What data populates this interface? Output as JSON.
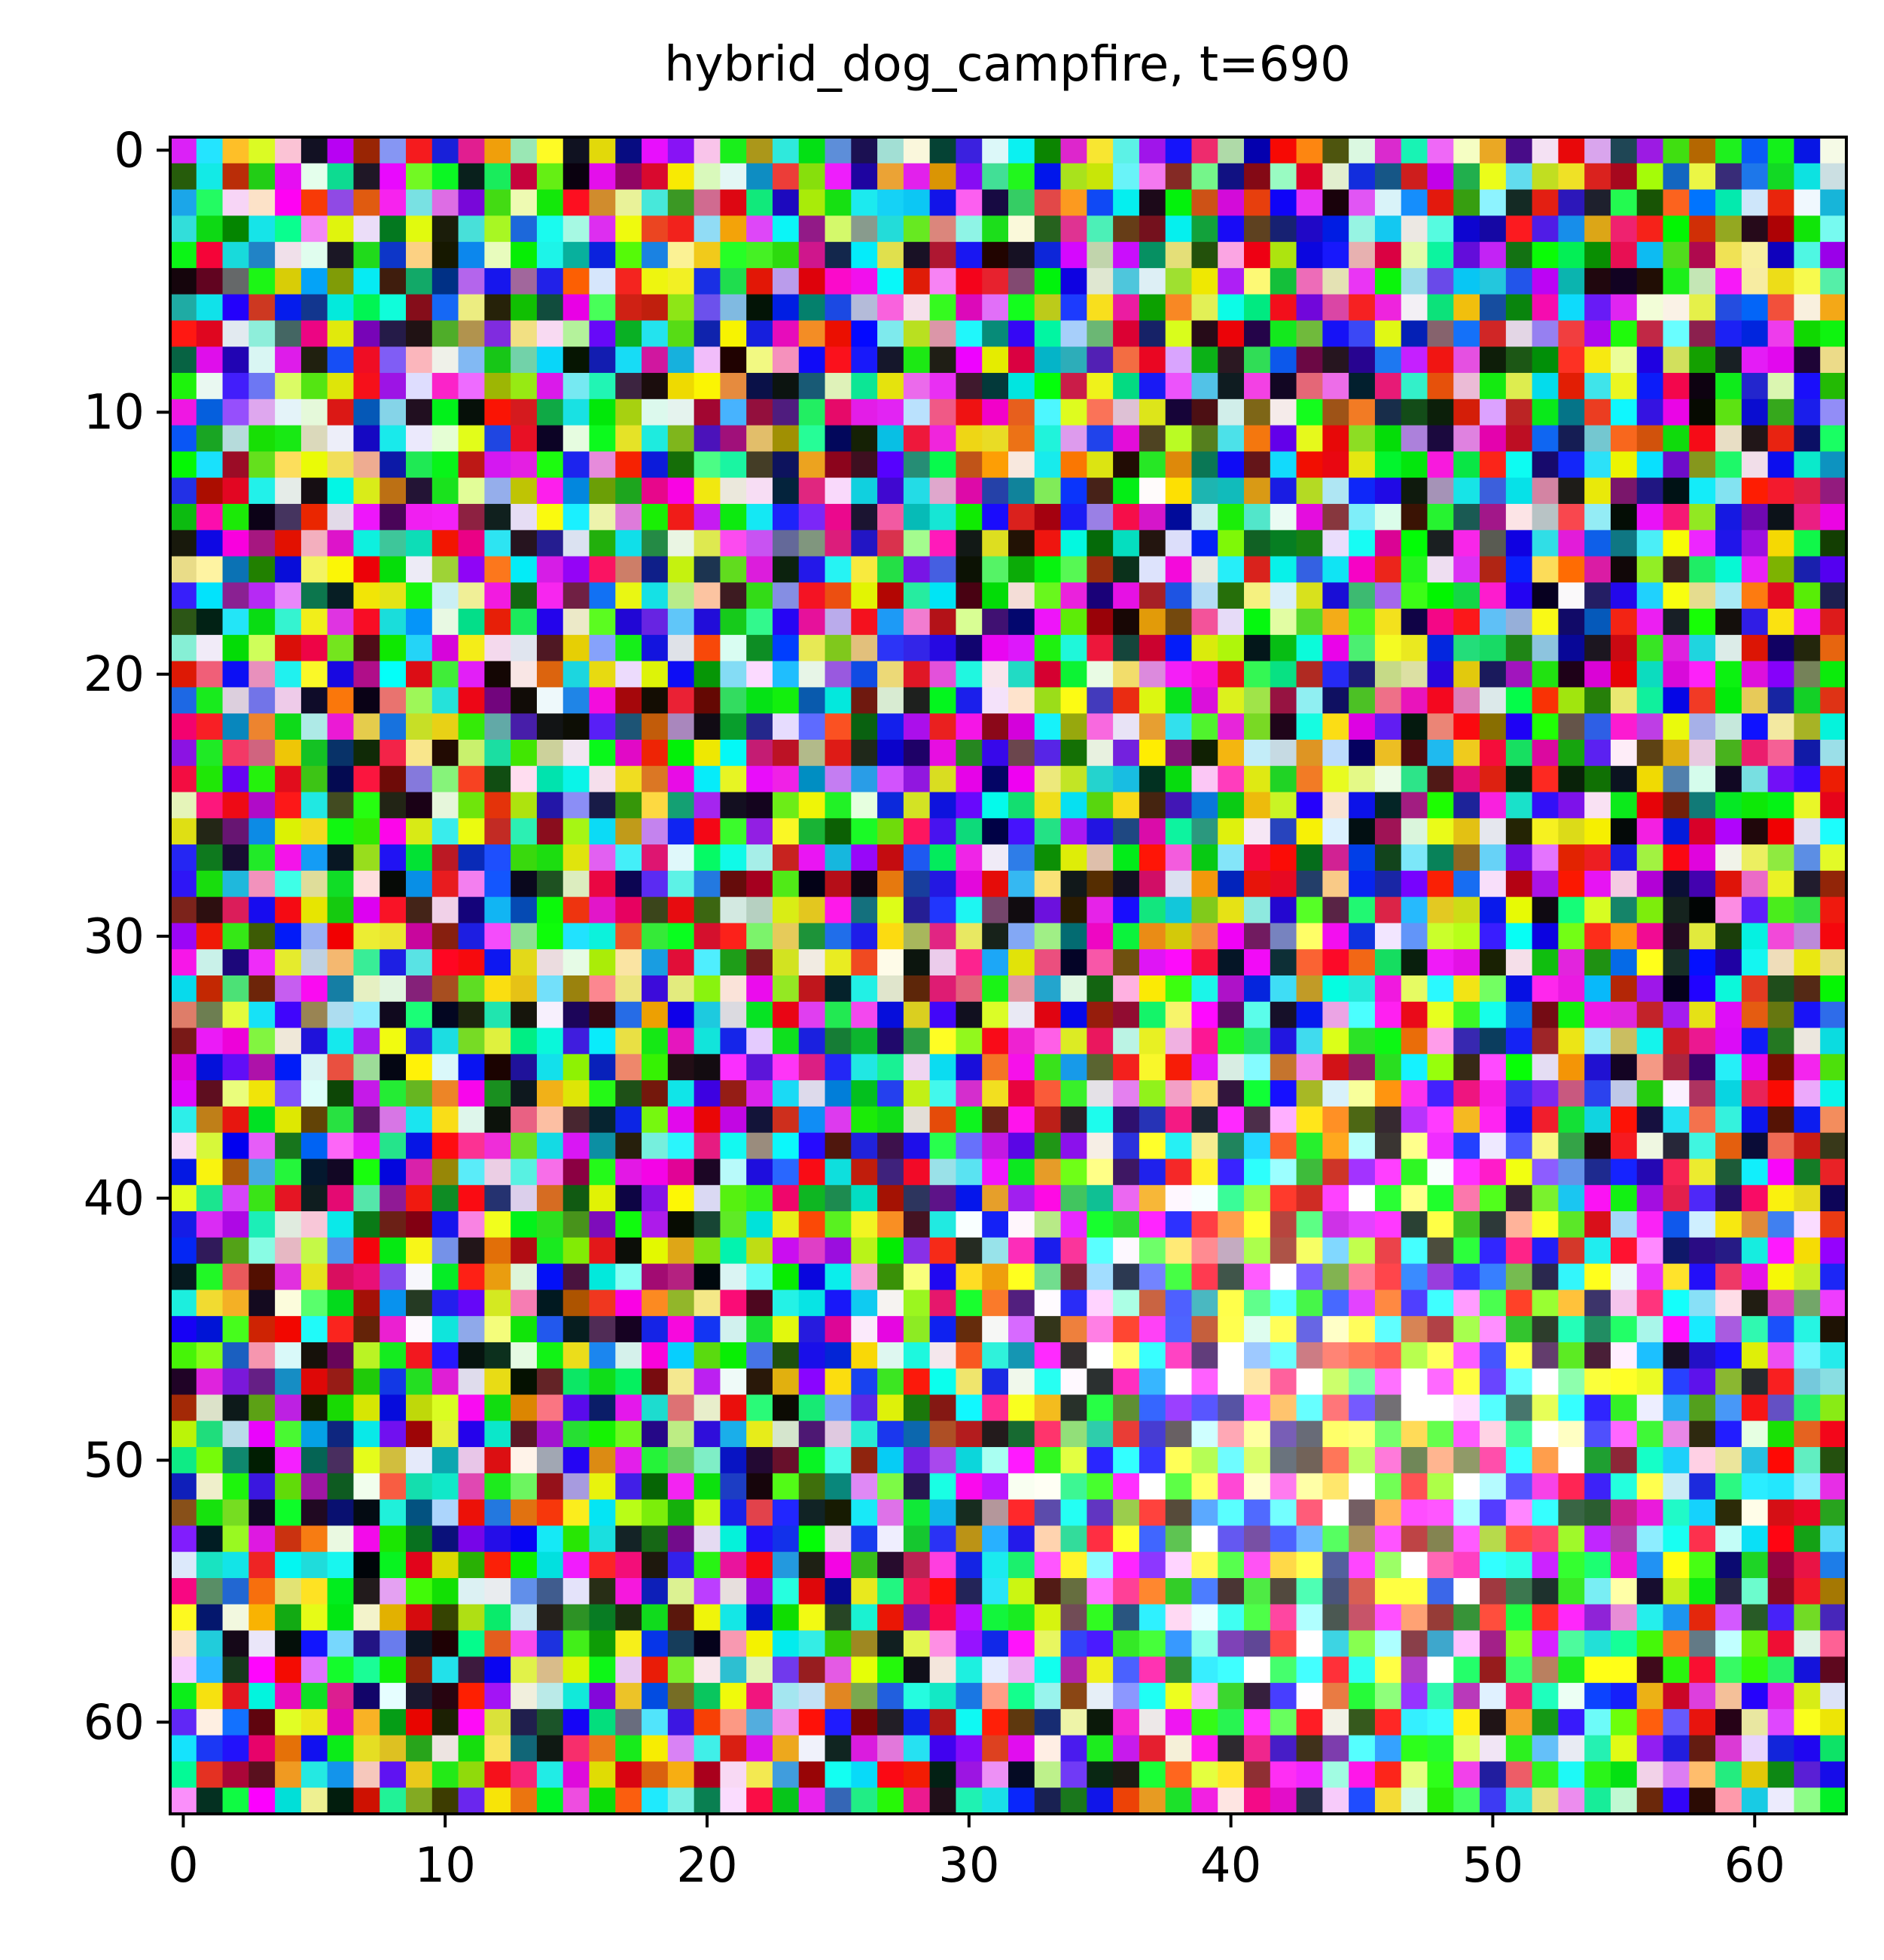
{
  "chart_data": {
    "type": "heatmap",
    "title": "hybrid_dog_campfire, t=690",
    "xlabel": "",
    "ylabel": "",
    "image_shape": [
      64,
      64
    ],
    "content": "RGB noise image at diffusion timestep 690",
    "xlim": [
      -0.5,
      63.5
    ],
    "ylim": [
      63.5,
      -0.5
    ],
    "x_ticks": [
      0,
      10,
      20,
      30,
      40,
      50,
      60
    ],
    "x_tick_labels": [
      "0",
      "10",
      "20",
      "30",
      "40",
      "50",
      "60"
    ],
    "y_ticks": [
      0,
      10,
      20,
      30,
      40,
      50,
      60
    ],
    "y_tick_labels": [
      "0",
      "10",
      "20",
      "30",
      "40",
      "50",
      "60"
    ],
    "grid": false,
    "legend": "none"
  }
}
